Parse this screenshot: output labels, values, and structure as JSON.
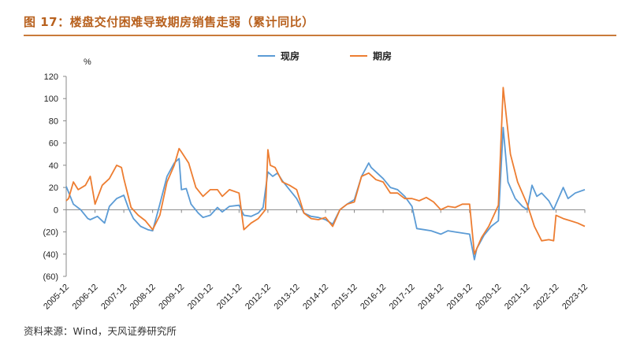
{
  "figure": {
    "title": "图 17：楼盘交付困难导致期房销售走弱（累计同比）",
    "source": "资料来源：Wind，天风证券研究所"
  },
  "colors": {
    "title": "#b8611e",
    "spot": "#5b9bd5",
    "forward": "#ed7d31"
  },
  "chart_data": {
    "type": "line",
    "unit_label": "%",
    "ylim": [
      -60,
      120
    ],
    "yticks": [
      120,
      100,
      80,
      60,
      40,
      20,
      0,
      -20,
      -40,
      -60
    ],
    "ytick_labels": [
      "120",
      "100",
      "80",
      "60",
      "40",
      "20",
      "0",
      "(20)",
      "(40)",
      "(60)"
    ],
    "xtick_labels": [
      "2005-12",
      "2006-12",
      "2007-12",
      "2008-12",
      "2009-12",
      "2010-12",
      "2011-12",
      "2012-12",
      "2013-12",
      "2014-12",
      "2015-12",
      "2016-12",
      "2017-12",
      "2018-12",
      "2019-12",
      "2020-12",
      "2021-12",
      "2022-12",
      "2023-12"
    ],
    "legend_position": "top",
    "grid": false,
    "series": [
      {
        "name": "现房",
        "points": [
          [
            "2005-12",
            21
          ],
          [
            "2006-03",
            5
          ],
          [
            "2006-06",
            0
          ],
          [
            "2006-09",
            -8
          ],
          [
            "2006-10",
            -9
          ],
          [
            "2007-01",
            -6
          ],
          [
            "2007-04",
            -12
          ],
          [
            "2007-06",
            3
          ],
          [
            "2007-09",
            10
          ],
          [
            "2007-12",
            13
          ],
          [
            "2008-02",
            1
          ],
          [
            "2008-04",
            -8
          ],
          [
            "2008-07",
            -15
          ],
          [
            "2008-10",
            -18
          ],
          [
            "2008-12",
            -19
          ],
          [
            "2009-03",
            5
          ],
          [
            "2009-06",
            30
          ],
          [
            "2009-09",
            42
          ],
          [
            "2009-11",
            46
          ],
          [
            "2009-12",
            18
          ],
          [
            "2010-02",
            19
          ],
          [
            "2010-04",
            5
          ],
          [
            "2010-07",
            -3
          ],
          [
            "2010-09",
            -7
          ],
          [
            "2010-12",
            -5
          ],
          [
            "2011-03",
            2
          ],
          [
            "2011-05",
            -2
          ],
          [
            "2011-08",
            3
          ],
          [
            "2011-12",
            4
          ],
          [
            "2012-02",
            -5
          ],
          [
            "2012-05",
            -6
          ],
          [
            "2012-08",
            -3
          ],
          [
            "2012-10",
            2
          ],
          [
            "2012-12",
            34
          ],
          [
            "2013-02",
            30
          ],
          [
            "2013-04",
            33
          ],
          [
            "2013-06",
            26
          ],
          [
            "2013-09",
            18
          ],
          [
            "2013-12",
            10
          ],
          [
            "2014-03",
            -3
          ],
          [
            "2014-06",
            -6
          ],
          [
            "2014-09",
            -7
          ],
          [
            "2014-12",
            -9
          ],
          [
            "2015-03",
            -13
          ],
          [
            "2015-06",
            0
          ],
          [
            "2015-09",
            5
          ],
          [
            "2015-12",
            9
          ],
          [
            "2016-03",
            30
          ],
          [
            "2016-06",
            42
          ],
          [
            "2016-07",
            38
          ],
          [
            "2016-12",
            28
          ],
          [
            "2017-03",
            20
          ],
          [
            "2017-06",
            18
          ],
          [
            "2017-09",
            12
          ],
          [
            "2017-12",
            3
          ],
          [
            "2018-02",
            -17
          ],
          [
            "2018-05",
            -18
          ],
          [
            "2018-08",
            -19
          ],
          [
            "2018-12",
            -22
          ],
          [
            "2019-03",
            -19
          ],
          [
            "2019-06",
            -20
          ],
          [
            "2019-09",
            -21
          ],
          [
            "2019-12",
            -22
          ],
          [
            "2020-02",
            -45
          ],
          [
            "2020-03",
            -35
          ],
          [
            "2020-06",
            -23
          ],
          [
            "2020-09",
            -15
          ],
          [
            "2020-12",
            -10
          ],
          [
            "2021-02",
            74
          ],
          [
            "2021-04",
            25
          ],
          [
            "2021-07",
            10
          ],
          [
            "2021-10",
            3
          ],
          [
            "2021-12",
            0
          ],
          [
            "2022-02",
            22
          ],
          [
            "2022-04",
            12
          ],
          [
            "2022-06",
            15
          ],
          [
            "2022-09",
            8
          ],
          [
            "2022-11",
            0
          ],
          [
            "2022-12",
            5
          ],
          [
            "2023-03",
            20
          ],
          [
            "2023-05",
            10
          ],
          [
            "2023-08",
            15
          ],
          [
            "2023-12",
            18
          ]
        ]
      },
      {
        "name": "期房",
        "points": [
          [
            "2005-12",
            8
          ],
          [
            "2006-01",
            10
          ],
          [
            "2006-03",
            25
          ],
          [
            "2006-05",
            18
          ],
          [
            "2006-08",
            22
          ],
          [
            "2006-10",
            30
          ],
          [
            "2006-12",
            5
          ],
          [
            "2007-03",
            22
          ],
          [
            "2007-06",
            28
          ],
          [
            "2007-09",
            40
          ],
          [
            "2007-11",
            38
          ],
          [
            "2007-12",
            28
          ],
          [
            "2008-03",
            2
          ],
          [
            "2008-06",
            -5
          ],
          [
            "2008-09",
            -10
          ],
          [
            "2008-12",
            -18
          ],
          [
            "2009-03",
            -5
          ],
          [
            "2009-06",
            25
          ],
          [
            "2009-09",
            40
          ],
          [
            "2009-11",
            55
          ],
          [
            "2009-12",
            52
          ],
          [
            "2010-03",
            42
          ],
          [
            "2010-06",
            20
          ],
          [
            "2010-09",
            12
          ],
          [
            "2010-12",
            18
          ],
          [
            "2011-03",
            18
          ],
          [
            "2011-05",
            12
          ],
          [
            "2011-08",
            18
          ],
          [
            "2011-12",
            15
          ],
          [
            "2012-02",
            -18
          ],
          [
            "2012-05",
            -12
          ],
          [
            "2012-08",
            -8
          ],
          [
            "2012-11",
            0
          ],
          [
            "2012-12",
            54
          ],
          [
            "2013-01",
            40
          ],
          [
            "2013-03",
            38
          ],
          [
            "2013-06",
            25
          ],
          [
            "2013-09",
            22
          ],
          [
            "2013-12",
            18
          ],
          [
            "2014-03",
            -3
          ],
          [
            "2014-06",
            -8
          ],
          [
            "2014-09",
            -9
          ],
          [
            "2014-12",
            -7
          ],
          [
            "2015-03",
            -15
          ],
          [
            "2015-06",
            0
          ],
          [
            "2015-09",
            5
          ],
          [
            "2015-12",
            7
          ],
          [
            "2016-03",
            30
          ],
          [
            "2016-06",
            33
          ],
          [
            "2016-09",
            27
          ],
          [
            "2016-12",
            25
          ],
          [
            "2017-03",
            15
          ],
          [
            "2017-06",
            15
          ],
          [
            "2017-09",
            10
          ],
          [
            "2017-12",
            10
          ],
          [
            "2018-03",
            8
          ],
          [
            "2018-06",
            11
          ],
          [
            "2018-09",
            7
          ],
          [
            "2018-12",
            0
          ],
          [
            "2019-03",
            3
          ],
          [
            "2019-06",
            2
          ],
          [
            "2019-09",
            5
          ],
          [
            "2019-12",
            5
          ],
          [
            "2020-02",
            -40
          ],
          [
            "2020-05",
            -25
          ],
          [
            "2020-08",
            -15
          ],
          [
            "2020-12",
            4
          ],
          [
            "2021-02",
            110
          ],
          [
            "2021-05",
            50
          ],
          [
            "2021-08",
            25
          ],
          [
            "2021-11",
            10
          ],
          [
            "2021-12",
            5
          ],
          [
            "2022-03",
            -15
          ],
          [
            "2022-06",
            -28
          ],
          [
            "2022-09",
            -27
          ],
          [
            "2022-11",
            -28
          ],
          [
            "2022-12",
            -5
          ],
          [
            "2023-03",
            -8
          ],
          [
            "2023-06",
            -10
          ],
          [
            "2023-09",
            -12
          ],
          [
            "2023-12",
            -15
          ]
        ]
      }
    ]
  }
}
